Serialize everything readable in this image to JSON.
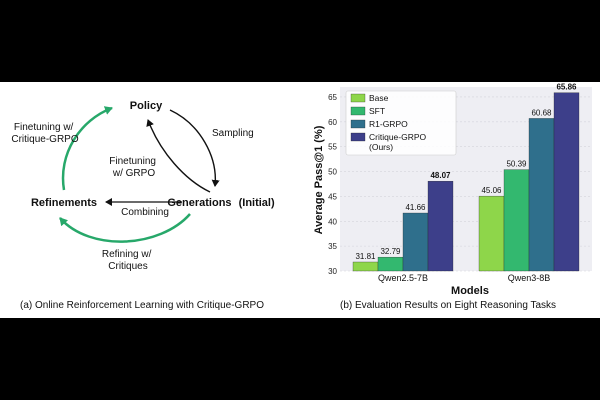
{
  "diagram": {
    "nodes": {
      "policy": "Policy",
      "generations": "Generations",
      "initial": "(Initial)",
      "refinements": "Refinements"
    },
    "edges": {
      "sampling": "Sampling",
      "finetune_grpo": [
        "Finetuning",
        "w/ GRPO"
      ],
      "combining": "Combining",
      "refining": [
        "Refining w/",
        "Critiques"
      ],
      "finetune_critique": [
        "Finetuning w/",
        "Critique-GRPO"
      ]
    },
    "colors": {
      "green": "#27a86a",
      "black": "#111111"
    },
    "caption": "(a) Online Reinforcement Learning with Critique-GRPO"
  },
  "chart_data": {
    "type": "bar",
    "categories": [
      "Qwen2.5-7B",
      "Qwen3-8B"
    ],
    "series": [
      {
        "name": "Base",
        "values": [
          31.81,
          45.06
        ],
        "color": "#8ed64a"
      },
      {
        "name": "SFT",
        "values": [
          32.79,
          50.39
        ],
        "color": "#33b86f"
      },
      {
        "name": "R1-GRPO",
        "values": [
          41.66,
          60.68
        ],
        "color": "#2f6f8c"
      },
      {
        "name": "Critique-GRPO (Ours)",
        "values": [
          48.07,
          65.86
        ],
        "color": "#3d3f8a"
      }
    ],
    "xlabel": "Models",
    "ylabel": "Average Pass@1 (%)",
    "ylim": [
      30,
      67
    ],
    "yticks": [
      30,
      35,
      40,
      45,
      50,
      55,
      60,
      65
    ],
    "grid": true,
    "legend": "top-left",
    "bold_labels": [
      "48.07",
      "65.86"
    ],
    "caption": "(b) Evaluation Results on Eight Reasoning Tasks"
  }
}
